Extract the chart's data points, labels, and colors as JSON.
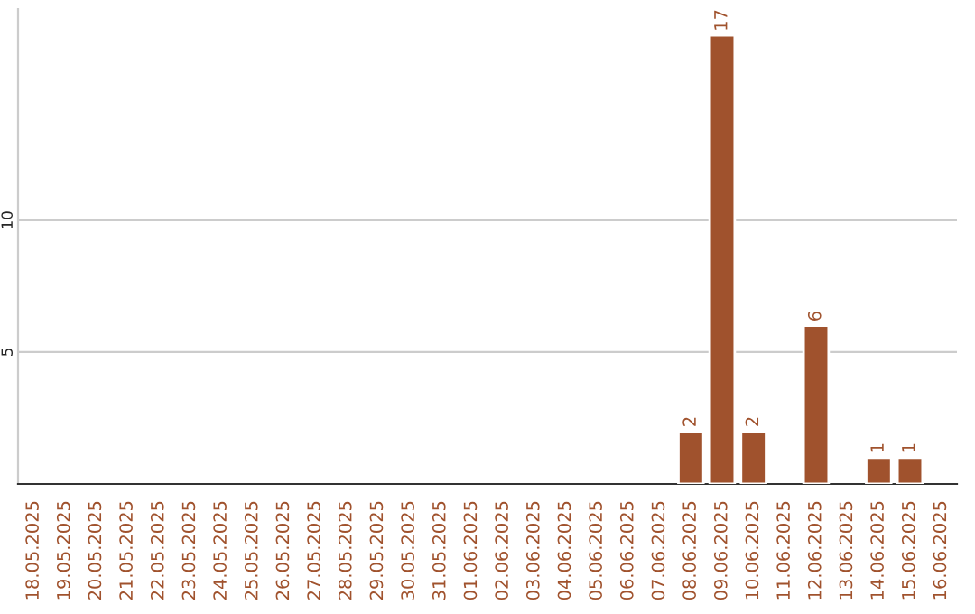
{
  "chart_data": {
    "type": "bar",
    "categories": [
      "18.05.2025",
      "19.05.2025",
      "20.05.2025",
      "21.05.2025",
      "22.05.2025",
      "23.05.2025",
      "24.05.2025",
      "25.05.2025",
      "26.05.2025",
      "27.05.2025",
      "28.05.2025",
      "29.05.2025",
      "30.05.2025",
      "31.05.2025",
      "01.06.2025",
      "02.06.2025",
      "03.06.2025",
      "04.06.2025",
      "05.06.2025",
      "06.06.2025",
      "07.06.2025",
      "08.06.2025",
      "09.06.2025",
      "10.06.2025",
      "11.06.2025",
      "12.06.2025",
      "13.06.2025",
      "14.06.2025",
      "15.06.2025",
      "16.06.2025"
    ],
    "values": [
      null,
      null,
      null,
      null,
      null,
      null,
      null,
      null,
      null,
      null,
      null,
      null,
      null,
      null,
      null,
      null,
      null,
      null,
      null,
      null,
      null,
      2,
      17,
      2,
      null,
      6,
      null,
      1,
      1,
      null
    ],
    "color": "#a0522d",
    "data_labels": true,
    "ylim": [
      0,
      18
    ],
    "yticks": [
      5,
      10
    ],
    "grid": "y"
  }
}
